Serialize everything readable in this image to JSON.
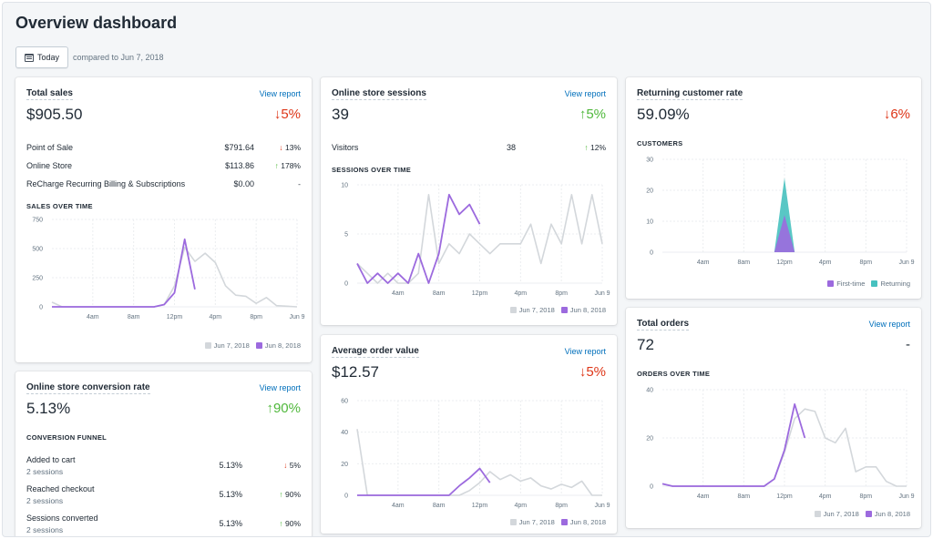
{
  "page": {
    "title": "Overview dashboard"
  },
  "date_filter": {
    "label": "Today",
    "compare": "compared to Jun 7, 2018"
  },
  "colors": {
    "previous": "#d3d7db",
    "current": "#9c6ade",
    "returning": "#47c1bf",
    "first_time": "#9c6ade"
  },
  "view_report": "View report",
  "total_sales": {
    "title": "Total sales",
    "value": "$905.50",
    "change_arrow": "↓",
    "change": "5%",
    "rows": [
      {
        "label": "Point of Sale",
        "value": "$791.64",
        "arrow": "↓",
        "change": "13%",
        "dir": "down"
      },
      {
        "label": "Online Store",
        "value": "$113.86",
        "arrow": "↑",
        "change": "178%",
        "dir": "up"
      },
      {
        "label": "ReCharge Recurring Billing & Subscriptions",
        "value": "$0.00",
        "arrow": "",
        "change": "-",
        "dir": "none"
      }
    ],
    "chart_label": "SALES OVER TIME"
  },
  "sessions": {
    "title": "Online store sessions",
    "value": "39",
    "change_arrow": "↑",
    "change": "5%",
    "visitors_label": "Visitors",
    "visitors_value": "38",
    "visitors_arrow": "↑",
    "visitors_change": "12%",
    "chart_label": "SESSIONS OVER TIME"
  },
  "returning": {
    "title": "Returning customer rate",
    "value": "59.09%",
    "change_arrow": "↓",
    "change": "6%",
    "chart_label": "CUSTOMERS"
  },
  "conversion": {
    "title": "Online store conversion rate",
    "value": "5.13%",
    "change_arrow": "↑",
    "change": "90%",
    "funnel_label": "CONVERSION FUNNEL",
    "rows": [
      {
        "label": "Added to cart",
        "sub": "2 sessions",
        "value": "5.13%",
        "arrow": "↓",
        "change": "5%",
        "dir": "down"
      },
      {
        "label": "Reached checkout",
        "sub": "2 sessions",
        "value": "5.13%",
        "arrow": "↑",
        "change": "90%",
        "dir": "up"
      },
      {
        "label": "Sessions converted",
        "sub": "2 sessions",
        "value": "5.13%",
        "arrow": "↑",
        "change": "90%",
        "dir": "up"
      }
    ]
  },
  "aov": {
    "title": "Average order value",
    "value": "$12.57",
    "change_arrow": "↓",
    "change": "5%"
  },
  "orders": {
    "title": "Total orders",
    "value": "72",
    "change": "-",
    "chart_label": "ORDERS OVER TIME"
  },
  "legend": {
    "previous": "Jun 7, 2018",
    "current": "Jun 8, 2018",
    "first_time": "First-time",
    "returning": "Returning"
  },
  "chart_data": [
    {
      "id": "sales",
      "type": "line",
      "x_ticks": [
        "4am",
        "8am",
        "12pm",
        "4pm",
        "8pm",
        "Jun 9"
      ],
      "y_ticks": [
        0,
        250,
        500,
        750
      ],
      "ylim": [
        0,
        750
      ],
      "grid": true,
      "legend": "bottom-right",
      "series": [
        {
          "name": "Jun 7, 2018",
          "values": [
            40,
            0,
            0,
            0,
            0,
            0,
            0,
            0,
            0,
            0,
            0,
            20,
            180,
            510,
            390,
            460,
            380,
            180,
            100,
            90,
            30,
            80,
            10,
            5,
            0
          ]
        },
        {
          "name": "Jun 8, 2018",
          "values": [
            0,
            0,
            0,
            0,
            0,
            0,
            0,
            0,
            0,
            0,
            0,
            20,
            120,
            580,
            150
          ]
        }
      ]
    },
    {
      "id": "sessions",
      "type": "line",
      "x_ticks": [
        "4am",
        "8am",
        "12pm",
        "4pm",
        "8pm",
        "Jun 9"
      ],
      "y_ticks": [
        0,
        5,
        10
      ],
      "ylim": [
        0,
        10
      ],
      "grid": true,
      "legend": "bottom-right",
      "series": [
        {
          "name": "Jun 7, 2018",
          "values": [
            2,
            1,
            0,
            1,
            0,
            0,
            1,
            9,
            2,
            4,
            3,
            5,
            4,
            3,
            4,
            4,
            4,
            6,
            2,
            6,
            4,
            9,
            4,
            9,
            4
          ]
        },
        {
          "name": "Jun 8, 2018",
          "values": [
            2,
            0,
            1,
            0,
            1,
            0,
            3,
            0,
            3,
            9,
            7,
            8,
            6
          ]
        }
      ]
    },
    {
      "id": "customers",
      "type": "area",
      "x_ticks": [
        "4am",
        "8am",
        "12pm",
        "4pm",
        "8pm",
        "Jun 9"
      ],
      "y_ticks": [
        0,
        10,
        20,
        30
      ],
      "ylim": [
        0,
        30
      ],
      "grid": true,
      "legend": "bottom-right",
      "series": [
        {
          "name": "First-time",
          "values": [
            0,
            0,
            0,
            0,
            0,
            0,
            0,
            0,
            0,
            0,
            0,
            0,
            12,
            0,
            0,
            0,
            0,
            0,
            0,
            0,
            0,
            0,
            0,
            0,
            0
          ]
        },
        {
          "name": "Returning",
          "values": [
            0,
            0,
            0,
            0,
            0,
            0,
            0,
            0,
            0,
            0,
            0,
            0,
            24,
            0,
            0,
            0,
            0,
            0,
            0,
            0,
            0,
            0,
            0,
            0,
            0
          ]
        }
      ]
    },
    {
      "id": "aov",
      "type": "line",
      "x_ticks": [
        "4am",
        "8am",
        "12pm",
        "4pm",
        "8pm",
        "Jun 9"
      ],
      "y_ticks": [
        0,
        20,
        40,
        60
      ],
      "ylim": [
        0,
        60
      ],
      "grid": true,
      "legend": "bottom-right",
      "series": [
        {
          "name": "Jun 7, 2018",
          "values": [
            42,
            0,
            0,
            0,
            0,
            0,
            0,
            0,
            0,
            0,
            0,
            3,
            8,
            15,
            10,
            13,
            9,
            11,
            6,
            4,
            7,
            5,
            9,
            0,
            0
          ]
        },
        {
          "name": "Jun 8, 2018",
          "values": [
            0,
            0,
            0,
            0,
            0,
            0,
            0,
            0,
            0,
            0,
            6,
            11,
            17,
            8
          ]
        }
      ]
    },
    {
      "id": "orders",
      "type": "line",
      "x_ticks": [
        "4am",
        "8am",
        "12pm",
        "4pm",
        "8pm",
        "Jun 9"
      ],
      "y_ticks": [
        0,
        20,
        40
      ],
      "ylim": [
        0,
        40
      ],
      "grid": true,
      "legend": "bottom-right",
      "series": [
        {
          "name": "Jun 7, 2018",
          "values": [
            1,
            0,
            0,
            0,
            0,
            0,
            0,
            0,
            0,
            0,
            0,
            3,
            14,
            28,
            32,
            31,
            20,
            18,
            24,
            6,
            8,
            8,
            2,
            0,
            0
          ]
        },
        {
          "name": "Jun 8, 2018",
          "values": [
            1,
            0,
            0,
            0,
            0,
            0,
            0,
            0,
            0,
            0,
            0,
            3,
            15,
            34,
            20
          ]
        }
      ]
    }
  ]
}
